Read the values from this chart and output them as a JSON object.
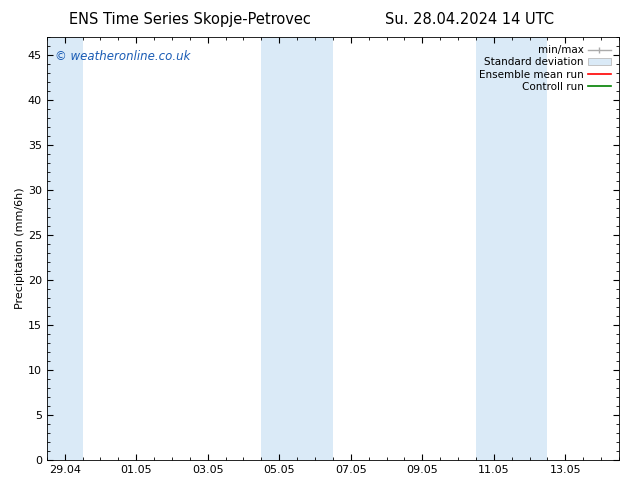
{
  "title_left": "ENS Time Series Skopje-Petrovec",
  "title_right": "Su. 28.04.2024 14 UTC",
  "ylabel": "Precipitation (mm/6h)",
  "watermark": "© weatheronline.co.uk",
  "background_color": "#ffffff",
  "plot_bg_color": "#ffffff",
  "ylim": [
    0,
    47
  ],
  "yticks": [
    0,
    5,
    10,
    15,
    20,
    25,
    30,
    35,
    40,
    45
  ],
  "xtick_labels": [
    "29.04",
    "01.05",
    "03.05",
    "05.05",
    "07.05",
    "09.05",
    "11.05",
    "13.05"
  ],
  "xtick_positions": [
    0,
    2,
    4,
    6,
    8,
    10,
    12,
    14
  ],
  "xmin": -0.5,
  "xmax": 15.5,
  "shaded_regions": [
    {
      "xmin": -0.5,
      "xmax": 0.5,
      "color": "#daeaf7"
    },
    {
      "xmin": 5.5,
      "xmax": 7.5,
      "color": "#daeaf7"
    },
    {
      "xmin": 11.5,
      "xmax": 13.5,
      "color": "#daeaf7"
    }
  ],
  "legend_items": [
    {
      "label": "min/max",
      "color": "#aaaaaa",
      "style": "line_with_cap"
    },
    {
      "label": "Standard deviation",
      "color": "#daeaf7",
      "style": "filled_rect"
    },
    {
      "label": "Ensemble mean run",
      "color": "#ff0000",
      "style": "line"
    },
    {
      "label": "Controll run",
      "color": "#008000",
      "style": "line"
    }
  ],
  "title_fontsize": 10.5,
  "tick_fontsize": 8,
  "legend_fontsize": 7.5,
  "watermark_color": "#1a5cb5",
  "watermark_fontsize": 8.5
}
